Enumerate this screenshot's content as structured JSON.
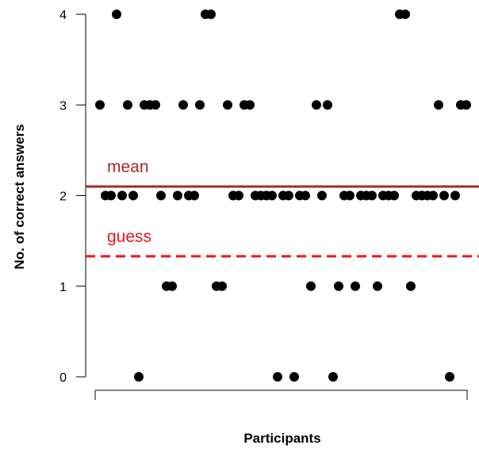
{
  "chart_data": {
    "type": "scatter",
    "xlabel": "Participants",
    "ylabel": "No. of correct answers",
    "ylim": [
      0,
      4
    ],
    "yticks": [
      "0",
      "1",
      "2",
      "3",
      "4"
    ],
    "x": [
      1,
      2,
      3,
      4,
      5,
      6,
      7,
      8,
      9,
      10,
      11,
      12,
      13,
      14,
      15,
      16,
      17,
      18,
      19,
      20,
      21,
      22,
      23,
      24,
      25,
      26,
      27,
      28,
      29,
      30,
      31,
      32,
      33,
      34,
      35,
      36,
      37,
      38,
      39,
      40,
      41,
      42,
      43,
      44,
      45,
      46,
      47,
      48,
      49,
      50,
      51,
      52,
      53,
      54,
      55,
      56,
      57,
      58,
      59,
      60,
      61,
      62,
      63,
      64,
      65,
      66,
      67
    ],
    "values": [
      3,
      2,
      2,
      4,
      2,
      3,
      2,
      0,
      3,
      3,
      3,
      2,
      1,
      1,
      2,
      3,
      2,
      2,
      3,
      4,
      4,
      1,
      1,
      3,
      2,
      2,
      3,
      3,
      2,
      2,
      2,
      2,
      0,
      2,
      2,
      0,
      2,
      2,
      1,
      3,
      2,
      3,
      0,
      1,
      2,
      2,
      1,
      2,
      2,
      2,
      1,
      2,
      2,
      2,
      4,
      4,
      1,
      2,
      2,
      2,
      2,
      3,
      2,
      0,
      2,
      3,
      3
    ],
    "reference_lines": [
      {
        "label": "mean",
        "value": 2.1,
        "color": "#a52a2a",
        "style": "solid"
      },
      {
        "label": "guess",
        "value": 1.33,
        "color": "#e8151b",
        "style": "dashed"
      }
    ]
  }
}
